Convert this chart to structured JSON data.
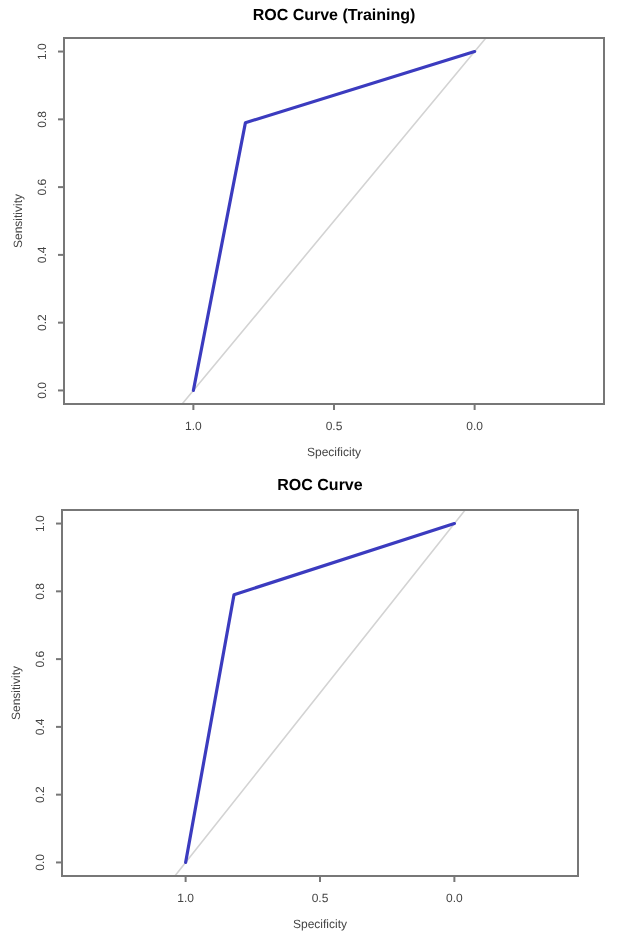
{
  "chart_data": [
    {
      "type": "line",
      "title": "ROC Curve (Training)",
      "xlabel": "Specificity",
      "ylabel": "Sensitivity",
      "xlim": [
        1.46,
        -0.46
      ],
      "ylim": [
        -0.04,
        1.04
      ],
      "xticks": [
        {
          "value": 1,
          "label": "1.0"
        },
        {
          "value": 0.5,
          "label": "0.5"
        },
        {
          "value": 0,
          "label": "0.0"
        }
      ],
      "yticks": [
        {
          "value": 0,
          "label": "0.0"
        },
        {
          "value": 0.2,
          "label": "0.2"
        },
        {
          "value": 0.4,
          "label": "0.4"
        },
        {
          "value": 0.6,
          "label": "0.6"
        },
        {
          "value": 0.8,
          "label": "0.8"
        },
        {
          "value": 1,
          "label": "1.0"
        }
      ],
      "grid": false,
      "series": [
        {
          "color": "#d3d3d3",
          "x": [
            1.04,
            -0.04
          ],
          "values": [
            -0.04,
            1.04
          ]
        },
        {
          "color": "#3b3bbf",
          "x": [
            1,
            0.815,
            0
          ],
          "values": [
            0,
            0.79,
            1
          ]
        }
      ]
    },
    {
      "type": "line",
      "title": "ROC Curve",
      "xlabel": "Specificity",
      "ylabel": "Sensitivity",
      "xlim": [
        1.46,
        -0.46
      ],
      "ylim": [
        -0.04,
        1.04
      ],
      "xticks": [
        {
          "value": 1,
          "label": "1.0"
        },
        {
          "value": 0.5,
          "label": "0.5"
        },
        {
          "value": 0,
          "label": "0.0"
        }
      ],
      "yticks": [
        {
          "value": 0,
          "label": "0.0"
        },
        {
          "value": 0.2,
          "label": "0.2"
        },
        {
          "value": 0.4,
          "label": "0.4"
        },
        {
          "value": 0.6,
          "label": "0.6"
        },
        {
          "value": 0.8,
          "label": "0.8"
        },
        {
          "value": 1,
          "label": "1.0"
        }
      ],
      "grid": false,
      "series": [
        {
          "color": "#d3d3d3",
          "x": [
            1.04,
            -0.04
          ],
          "values": [
            -0.04,
            1.04
          ]
        },
        {
          "color": "#3b3bbf",
          "x": [
            1,
            0.82,
            0
          ],
          "values": [
            0,
            0.79,
            1
          ]
        }
      ]
    }
  ]
}
